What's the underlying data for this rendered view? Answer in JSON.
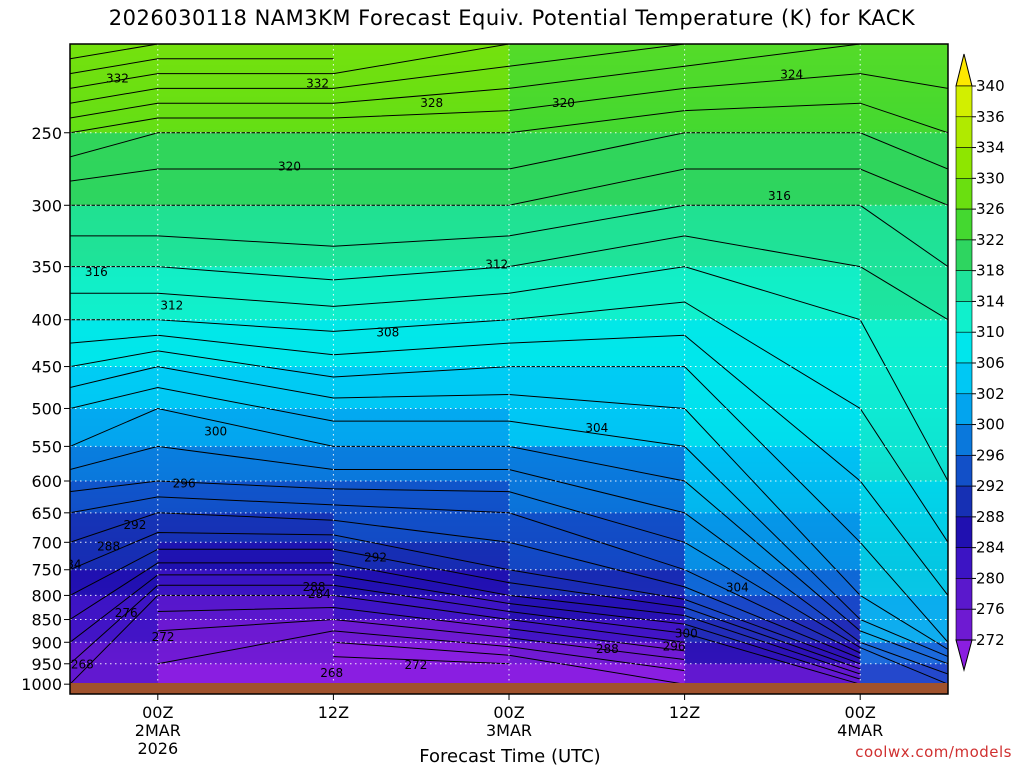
{
  "chart_data": {
    "type": "heatmap",
    "title": "2026030118 NAM3KM Forecast Equiv. Potential Temperature (K) for KACK",
    "xlabel": "Forecast Time (UTC)",
    "ylabel": "",
    "credit": "coolwx.com/models",
    "y_axis": {
      "scale": "pressure-log",
      "ylim": [
        1025,
        200
      ],
      "ticks": [
        250,
        300,
        350,
        400,
        450,
        500,
        550,
        600,
        650,
        700,
        750,
        800,
        850,
        900,
        950,
        1000
      ]
    },
    "x_axis": {
      "unit": "forecast hour",
      "xlim": [
        -5,
        45
      ],
      "ticks": [
        {
          "x": 0,
          "line1": "00Z",
          "line2": "2MAR",
          "line3": "2026"
        },
        {
          "x": 10,
          "line1": "12Z",
          "line2": "",
          "line3": ""
        },
        {
          "x": 20,
          "line1": "00Z",
          "line2": "3MAR",
          "line3": ""
        },
        {
          "x": 30,
          "line1": "12Z",
          "line2": "",
          "line3": ""
        },
        {
          "x": 40,
          "line1": "00Z",
          "line2": "4MAR",
          "line3": ""
        }
      ]
    },
    "colorbar": {
      "levels": [
        340,
        336,
        334,
        330,
        326,
        322,
        318,
        314,
        310,
        306,
        302,
        300,
        296,
        292,
        288,
        284,
        280,
        276,
        272
      ],
      "colors": [
        "#fde800",
        "#d2ef00",
        "#b0ea00",
        "#8ee600",
        "#6adf10",
        "#44d830",
        "#2ed560",
        "#1ee39a",
        "#10f0cc",
        "#00e6ec",
        "#00c8f4",
        "#03a4ee",
        "#0a78dc",
        "#1250c8",
        "#1630b4",
        "#2010b0",
        "#3c14c4",
        "#5a18cc",
        "#6e1ad2",
        "#8a1ee0"
      ]
    },
    "theta_e_profiles": [
      {
        "x": -5,
        "pressure": [
          200,
          250,
          300,
          350,
          400,
          450,
          500,
          550,
          600,
          650,
          700,
          750,
          800,
          850,
          900,
          950,
          1000
        ],
        "values": [
          336,
          324,
          318,
          314,
          310,
          306,
          302,
          300,
          297,
          294,
          292,
          290,
          288,
          286,
          284,
          282,
          280
        ]
      },
      {
        "x": 0,
        "pressure": [
          200,
          250,
          300,
          350,
          400,
          450,
          500,
          550,
          600,
          650,
          700,
          750,
          800,
          850,
          900,
          950,
          1000
        ],
        "values": [
          334,
          322,
          318,
          314,
          310,
          304,
          300,
          298,
          296,
          292,
          289,
          285,
          280,
          277,
          275,
          274,
          274
        ]
      },
      {
        "x": 10,
        "pressure": [
          200,
          250,
          300,
          350,
          400,
          450,
          500,
          550,
          600,
          650,
          700,
          750,
          800,
          850,
          900,
          950,
          1000
        ],
        "values": [
          334,
          322,
          318,
          315,
          311,
          307,
          303,
          300,
          297,
          293,
          289,
          285,
          280,
          276,
          272,
          269,
          268
        ]
      },
      {
        "x": 20,
        "pressure": [
          200,
          250,
          300,
          350,
          400,
          450,
          500,
          550,
          600,
          650,
          700,
          750,
          800,
          850,
          900,
          950,
          1000
        ],
        "values": [
          330,
          322,
          318,
          314,
          310,
          306,
          303,
          300,
          297,
          294,
          292,
          290,
          286,
          280,
          275,
          270,
          268
        ]
      },
      {
        "x": 30,
        "pressure": [
          200,
          250,
          300,
          350,
          400,
          450,
          500,
          550,
          600,
          650,
          700,
          750,
          800,
          850,
          900,
          950,
          1000
        ],
        "values": [
          328,
          320,
          316,
          312,
          309,
          306,
          304,
          302,
          300,
          298,
          296,
          294,
          291,
          285,
          280,
          275,
          272
        ]
      },
      {
        "x": 40,
        "pressure": [
          200,
          250,
          300,
          350,
          400,
          450,
          500,
          550,
          600,
          650,
          700,
          750,
          800,
          850,
          900,
          950,
          1000
        ],
        "values": [
          326,
          320,
          316,
          314,
          312,
          312,
          310,
          310,
          308,
          307,
          306,
          305,
          304,
          302,
          298,
          290,
          282
        ]
      },
      {
        "x": 45,
        "pressure": [
          200,
          250,
          300,
          350,
          400,
          450,
          500,
          550,
          600,
          650,
          700,
          750,
          800,
          850,
          900,
          950,
          1000
        ],
        "values": [
          326,
          322,
          318,
          316,
          314,
          314,
          314,
          313,
          312,
          311,
          310,
          309,
          308,
          307,
          306,
          300,
          296
        ]
      }
    ],
    "contour_labels": [
      {
        "text": "332",
        "x": -2.3,
        "p": 218
      },
      {
        "text": "332",
        "x": 9.1,
        "p": 221
      },
      {
        "text": "328",
        "x": 15.6,
        "p": 232
      },
      {
        "text": "324",
        "x": 36.1,
        "p": 216
      },
      {
        "text": "320",
        "x": 23.1,
        "p": 232
      },
      {
        "text": "320",
        "x": 7.5,
        "p": 272
      },
      {
        "text": "316",
        "x": 35.4,
        "p": 293
      },
      {
        "text": "316",
        "x": -3.5,
        "p": 355
      },
      {
        "text": "312",
        "x": 19.3,
        "p": 348
      },
      {
        "text": "312",
        "x": 0.8,
        "p": 386
      },
      {
        "text": "308",
        "x": 13.1,
        "p": 413
      },
      {
        "text": "304",
        "x": 25.0,
        "p": 525
      },
      {
        "text": "300",
        "x": 3.3,
        "p": 530
      },
      {
        "text": "296",
        "x": 1.5,
        "p": 604
      },
      {
        "text": "292",
        "x": -1.3,
        "p": 670
      },
      {
        "text": "292",
        "x": 12.4,
        "p": 727
      },
      {
        "text": "288",
        "x": -2.8,
        "p": 707
      },
      {
        "text": "288",
        "x": 8.9,
        "p": 783
      },
      {
        "text": "284",
        "x": -5.0,
        "p": 740
      },
      {
        "text": "284",
        "x": 9.2,
        "p": 797
      },
      {
        "text": "280",
        "x": -5.8,
        "p": 788
      },
      {
        "text": "276",
        "x": -1.8,
        "p": 836
      },
      {
        "text": "276",
        "x": -7.4,
        "p": 928
      },
      {
        "text": "272",
        "x": 0.3,
        "p": 888
      },
      {
        "text": "272",
        "x": 14.7,
        "p": 953
      },
      {
        "text": "268",
        "x": -4.3,
        "p": 952
      },
      {
        "text": "268",
        "x": 9.9,
        "p": 972
      },
      {
        "text": "304",
        "x": 33.0,
        "p": 784
      },
      {
        "text": "300",
        "x": 30.1,
        "p": 880
      },
      {
        "text": "296",
        "x": 29.4,
        "p": 910
      },
      {
        "text": "288",
        "x": 25.6,
        "p": 915
      }
    ]
  }
}
